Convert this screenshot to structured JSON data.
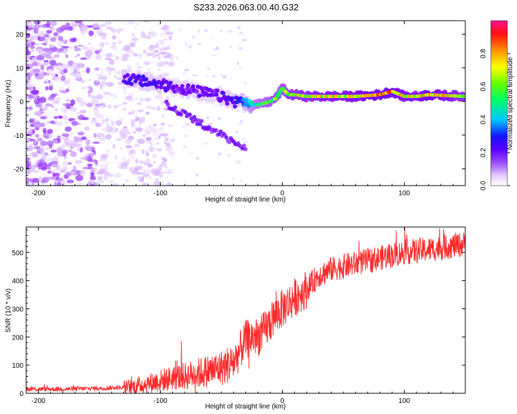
{
  "title": "S233.2026.063.00.40.G32",
  "chart_data": [
    {
      "type": "heatmap",
      "title": "S233.2026.063.00.40.G32",
      "xlabel": "Height of straight line (km)",
      "ylabel": "Frequency (Hz)",
      "xlim": [
        -210,
        150
      ],
      "ylim": [
        -25,
        24
      ],
      "xticks": [
        -200,
        -100,
        0,
        100
      ],
      "yticks": [
        -20,
        -10,
        0,
        10,
        20
      ],
      "colorbar": {
        "label": "Normalized spectral amplitude",
        "range": [
          0,
          1
        ],
        "ticks": [
          0.0,
          0.2,
          0.4,
          0.6,
          0.8
        ],
        "tick_labels": [
          "0.0",
          "0.2",
          "0.4",
          "0.6",
          "0.8"
        ],
        "colormap": [
          "#ffffff",
          "#d8b6ff",
          "#7a00ff",
          "#1a1aff",
          "#00e5ff",
          "#00ff33",
          "#ffff00",
          "#ff8000",
          "#ff0000",
          "#ff1090"
        ]
      },
      "ridge": {
        "description_points_x_km": [
          -130,
          -115,
          -100,
          -85,
          -70,
          -55,
          -40,
          -30,
          -25,
          -20,
          -10,
          -5,
          0,
          5,
          10,
          20,
          40,
          60,
          80,
          90,
          100,
          110,
          120,
          150
        ],
        "frequency_hz": [
          7,
          6,
          5,
          4,
          3,
          2,
          0,
          0,
          -1,
          -1,
          0,
          1,
          4,
          2,
          2,
          1.5,
          1.5,
          1.5,
          2,
          3,
          1.5,
          1.5,
          2,
          1.5
        ],
        "peak_amplitude": [
          0.3,
          0.3,
          0.3,
          0.25,
          0.25,
          0.25,
          0.3,
          0.4,
          0.5,
          0.55,
          0.6,
          0.65,
          0.6,
          0.7,
          0.7,
          0.7,
          0.75,
          0.75,
          0.85,
          0.85,
          0.75,
          0.75,
          0.8,
          0.7
        ]
      }
    },
    {
      "type": "line",
      "xlabel": "Height of straight line (km)",
      "ylabel": "SNR (10 * v/v)",
      "xlim": [
        -210,
        150
      ],
      "ylim": [
        0,
        590
      ],
      "xticks": [
        -200,
        -100,
        0,
        100
      ],
      "yticks": [
        0,
        100,
        200,
        300,
        400,
        500
      ],
      "series": [
        {
          "name": "SNR",
          "color": "#ff2a2a",
          "x": [
            -210,
            -180,
            -150,
            -125,
            -110,
            -100,
            -90,
            -80,
            -70,
            -60,
            -50,
            -40,
            -35,
            -30,
            -25,
            -20,
            -15,
            -10,
            -5,
            0,
            5,
            10,
            20,
            30,
            40,
            50,
            60,
            80,
            100,
            120,
            150
          ],
          "values": [
            15,
            15,
            18,
            22,
            35,
            45,
            55,
            60,
            70,
            80,
            90,
            110,
            150,
            190,
            200,
            200,
            220,
            250,
            280,
            300,
            320,
            340,
            370,
            420,
            440,
            450,
            460,
            480,
            500,
            510,
            530
          ]
        }
      ]
    }
  ]
}
